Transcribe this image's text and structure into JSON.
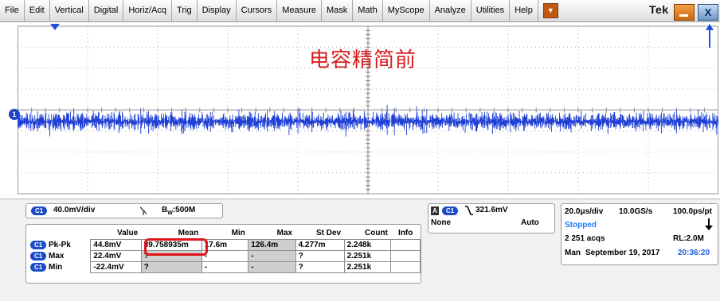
{
  "menu": {
    "items": [
      "File",
      "Edit",
      "Vertical",
      "Digital",
      "Horiz/Acq",
      "Trig",
      "Display",
      "Cursors",
      "Measure",
      "Mask",
      "Math",
      "MyScope",
      "Analyze",
      "Utilities",
      "Help"
    ],
    "dropdown_glyph": "▼",
    "brand": "Tek",
    "close_glyph": "X"
  },
  "screen": {
    "overlay_text": "电容精简前",
    "channel_marker": "1",
    "trace_color": "#1f3fd6"
  },
  "channel_readout": {
    "channel": "C1",
    "scale": "40.0mV/div",
    "coupling_icon": "ac-coupling-icon",
    "bandwidth": "B",
    "bandwidth_sub": "W",
    "bandwidth_value": ":500M"
  },
  "trigger": {
    "source_badge": "A",
    "channel": "C1",
    "level": "321.6mV",
    "mode_left": "None",
    "mode_right": "Auto"
  },
  "acquisition": {
    "timebase": "20.0μs/div",
    "sample_rate": "10.0GS/s",
    "resolution": "100.0ps/pt",
    "status": "Stopped",
    "acqs": "2 251 acqs",
    "record_length": "RL:2.0M",
    "mode": "Man",
    "date": "September 19, 2017",
    "time": "20:36:20"
  },
  "measurements": {
    "headers": [
      "Value",
      "Mean",
      "Min",
      "Max",
      "St Dev",
      "Count",
      "Info"
    ],
    "rows": [
      {
        "channel": "C1",
        "label": "Pk-Pk",
        "value": "44.8mV",
        "mean": "39.758935m",
        "min": "17.6m",
        "max": "126.4m",
        "stdev": "4.277m",
        "count": "2.248k",
        "info": ""
      },
      {
        "channel": "C1",
        "label": "Max",
        "value": "22.4mV",
        "mean": "?",
        "min": "-",
        "max": "-",
        "stdev": "?",
        "count": "2.251k",
        "info": ""
      },
      {
        "channel": "C1",
        "label": "Min",
        "value": "-22.4mV",
        "mean": "?",
        "min": "-",
        "max": "-",
        "stdev": "?",
        "count": "2.251k",
        "info": ""
      }
    ]
  },
  "colors": {
    "accent": "#1b4bc8",
    "highlight": "#e0161c",
    "status_stopped": "#1e7bff",
    "time": "#1e5ad8"
  }
}
